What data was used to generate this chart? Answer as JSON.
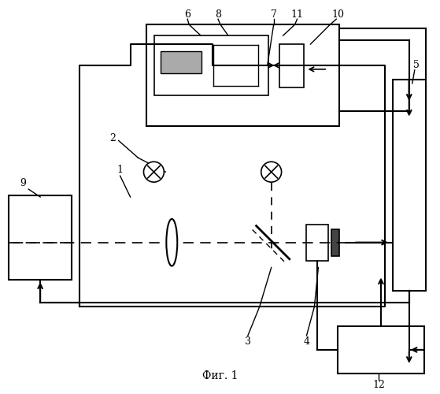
{
  "title": "Фиг. 1",
  "bg": "#ffffff",
  "fw": 5.59,
  "fh": 5.0
}
